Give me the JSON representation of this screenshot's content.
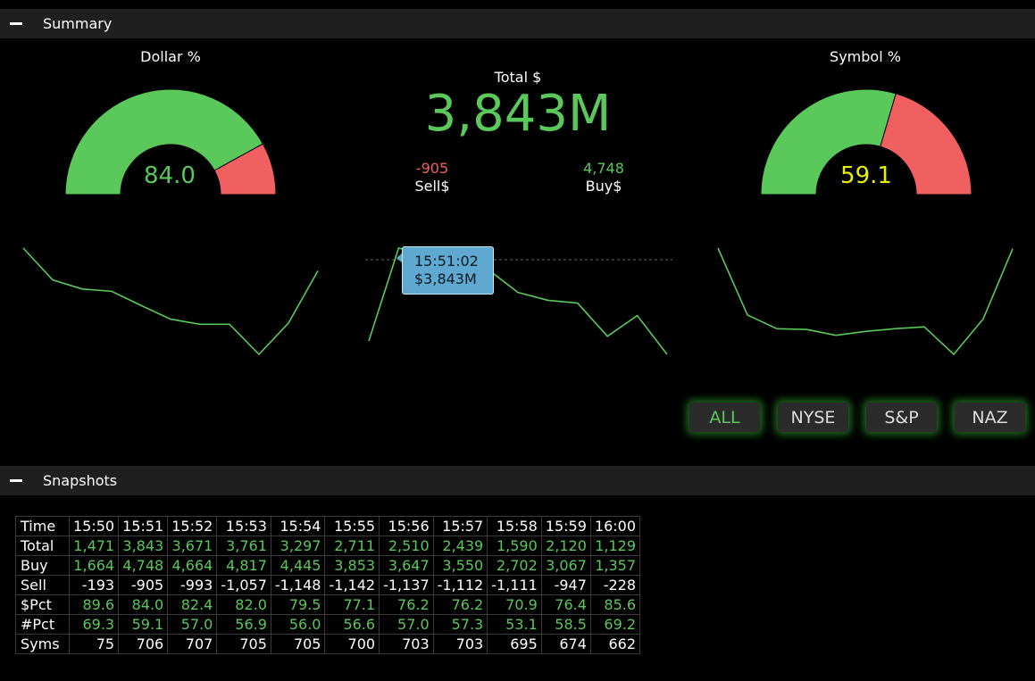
{
  "summary": {
    "title": "Summary",
    "dollar_gauge": {
      "title": "Dollar %",
      "value": "84.0",
      "fraction": 0.84,
      "value_color": "#5ac85a"
    },
    "symbol_gauge": {
      "title": "Symbol %",
      "value": "59.1",
      "fraction": 0.591,
      "value_color": "#e8f000"
    },
    "total_label": "Total $",
    "total_value": "3,843M",
    "sell_value": "-905",
    "sell_label": "Sell$",
    "buy_value": "4,748",
    "buy_label": "Buy$",
    "tooltip": {
      "time": "15:51:02",
      "value": "$3,843M"
    },
    "colors": {
      "green": "#5ac85a",
      "red": "#f06060",
      "tooltip": "#5fa8cf"
    },
    "filters": [
      {
        "label": "ALL",
        "active": true
      },
      {
        "label": "NYSE",
        "active": false
      },
      {
        "label": "S&P",
        "active": false
      },
      {
        "label": "NAZ",
        "active": false
      }
    ]
  },
  "chart_data": [
    {
      "type": "line",
      "name_ref": "dollar-pct-sparkline",
      "x": [
        "15:50",
        "15:51",
        "15:52",
        "15:53",
        "15:54",
        "15:55",
        "15:56",
        "15:57",
        "15:58",
        "15:59",
        "16:00"
      ],
      "values": [
        89.6,
        84.0,
        82.4,
        82.0,
        79.5,
        77.1,
        76.2,
        76.2,
        70.9,
        76.4,
        85.6
      ]
    },
    {
      "type": "line",
      "name_ref": "total-sparkline",
      "x": [
        "15:50",
        "15:51",
        "15:52",
        "15:53",
        "15:54",
        "15:55",
        "15:56",
        "15:57",
        "15:58",
        "15:59",
        "16:00"
      ],
      "values": [
        1471,
        3843,
        3671,
        3761,
        3297,
        2711,
        2510,
        2439,
        1590,
        2120,
        1129
      ]
    },
    {
      "type": "line",
      "name_ref": "symbol-pct-sparkline",
      "x": [
        "15:50",
        "15:51",
        "15:52",
        "15:53",
        "15:54",
        "15:55",
        "15:56",
        "15:57",
        "15:58",
        "15:59",
        "16:00"
      ],
      "values": [
        69.3,
        59.1,
        57.0,
        56.9,
        56.0,
        56.6,
        57.0,
        57.3,
        53.1,
        58.5,
        69.2
      ]
    }
  ],
  "snapshots": {
    "title": "Snapshots",
    "time_label": "Time",
    "times": [
      "15:50",
      "15:51",
      "15:52",
      "15:53",
      "15:54",
      "15:55",
      "15:56",
      "15:57",
      "15:58",
      "15:59",
      "16:00"
    ],
    "rows": [
      {
        "label": "Total",
        "color": "green",
        "values": [
          "1,471",
          "3,843",
          "3,671",
          "3,761",
          "3,297",
          "2,711",
          "2,510",
          "2,439",
          "1,590",
          "2,120",
          "1,129"
        ]
      },
      {
        "label": "Buy",
        "color": "green",
        "values": [
          "1,664",
          "4,748",
          "4,664",
          "4,817",
          "4,445",
          "3,853",
          "3,647",
          "3,550",
          "2,702",
          "3,067",
          "1,357"
        ]
      },
      {
        "label": "Sell",
        "color": "white",
        "values": [
          "-193",
          "-905",
          "-993",
          "-1,057",
          "-1,148",
          "-1,142",
          "-1,137",
          "-1,112",
          "-1,111",
          "-947",
          "-228"
        ]
      },
      {
        "label": "$Pct",
        "color": "green",
        "values": [
          "89.6",
          "84.0",
          "82.4",
          "82.0",
          "79.5",
          "77.1",
          "76.2",
          "76.2",
          "70.9",
          "76.4",
          "85.6"
        ]
      },
      {
        "label": "#Pct",
        "color": "green",
        "values": [
          "69.3",
          "59.1",
          "57.0",
          "56.9",
          "56.0",
          "56.6",
          "57.0",
          "57.3",
          "53.1",
          "58.5",
          "69.2"
        ]
      },
      {
        "label": "Syms",
        "color": "white",
        "values": [
          "75",
          "706",
          "707",
          "705",
          "705",
          "700",
          "703",
          "703",
          "695",
          "674",
          "662"
        ]
      }
    ]
  }
}
